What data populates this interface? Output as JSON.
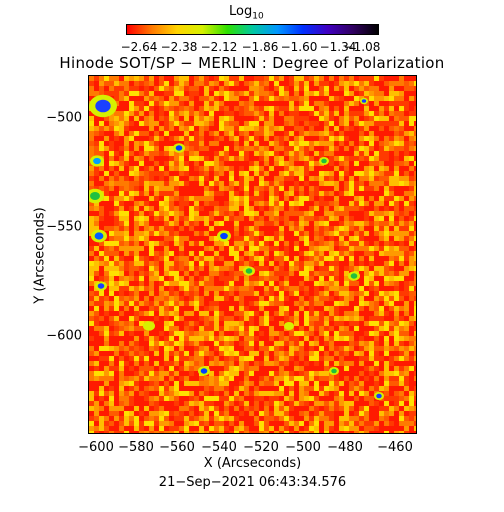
{
  "colorbar": {
    "title_main": "Log",
    "title_sub": "10",
    "ticks": [
      "−2.64",
      "−2.38",
      "−2.12",
      "−1.86",
      "−1.60",
      "−1.34",
      "−1.08"
    ],
    "colors": [
      "#ff0000",
      "#ff7a00",
      "#ffd400",
      "#d6f000",
      "#2ee000",
      "#00c8a0",
      "#0096ff",
      "#0030ff",
      "#4000c0",
      "#300060",
      "#000000"
    ]
  },
  "title": "Hinode SOT/SP − MERLIN : Degree of Polarization",
  "y_axis": {
    "label": "Y (Arcseconds)",
    "ticks": [
      "−500",
      "−550",
      "−600"
    ]
  },
  "x_axis": {
    "label": "X (Arcseconds)",
    "ticks": [
      "−600",
      "−580",
      "−560",
      "−540",
      "−520",
      "−500",
      "−480",
      "−460"
    ]
  },
  "timestamp": "21−Sep−2021 06:43:34.576"
}
